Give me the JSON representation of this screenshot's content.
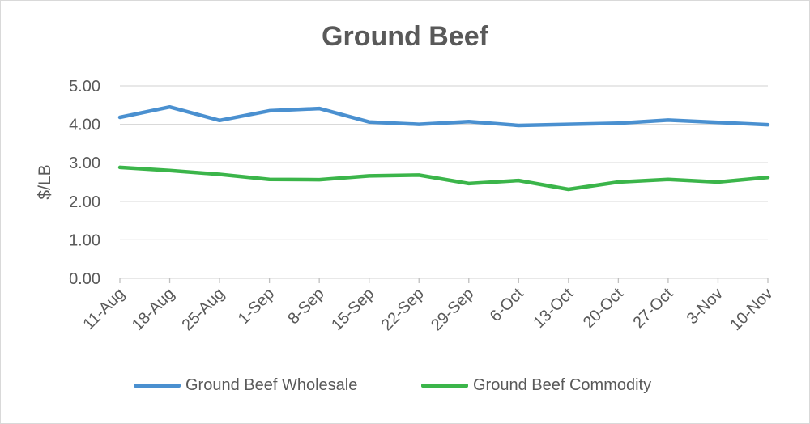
{
  "chart_data": {
    "type": "line",
    "title": "Ground Beef",
    "xlabel": "",
    "ylabel": "$/LB",
    "ylim": [
      0,
      5
    ],
    "yticks": [
      "0.00",
      "1.00",
      "2.00",
      "3.00",
      "4.00",
      "5.00"
    ],
    "grid": true,
    "legend_position": "bottom",
    "categories": [
      "11-Aug",
      "18-Aug",
      "25-Aug",
      "1-Sep",
      "8-Sep",
      "15-Sep",
      "22-Sep",
      "29-Sep",
      "6-Oct",
      "13-Oct",
      "20-Oct",
      "27-Oct",
      "3-Nov",
      "10-Nov"
    ],
    "series": [
      {
        "name": "Ground Beef Wholesale",
        "color": "#4a90d0",
        "values": [
          4.18,
          4.45,
          4.1,
          4.35,
          4.41,
          4.06,
          4.0,
          4.07,
          3.97,
          4.0,
          4.03,
          4.11,
          4.05,
          3.99
        ]
      },
      {
        "name": "Ground Beef Commodity",
        "color": "#3bb54a",
        "values": [
          2.88,
          2.8,
          2.7,
          2.57,
          2.56,
          2.66,
          2.68,
          2.46,
          2.54,
          2.31,
          2.5,
          2.57,
          2.5,
          2.62
        ]
      }
    ]
  }
}
